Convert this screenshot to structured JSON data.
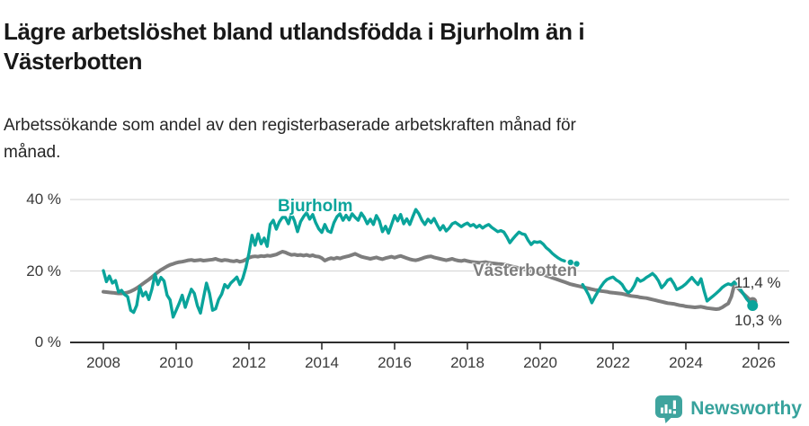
{
  "header": {
    "title": "Lägre arbetslöshet bland utlandsfödda i Bjurholm än i Västerbotten",
    "subtitle": "Arbetssökande som andel av den registerbaserade arbetskraften månad för månad."
  },
  "footer": {
    "brand_name": "Newsworthy",
    "logo_icon": "bar-chart-speech-bubble-icon",
    "brand_color": "#37a29c"
  },
  "colors": {
    "accent_teal": "#0aa49b",
    "series_gray": "#7d7d7d",
    "axis": "#2e2e2e",
    "gridline": "#d9d9d9",
    "text_dark": "#181818"
  },
  "chart_data": {
    "type": "line",
    "title": "Lägre arbetslöshet bland utlandsfödda i Bjurholm än i Västerbotten",
    "subtitle": "Arbetssökande som andel av den registerbaserade arbetskraften månad för månad.",
    "xlabel": "",
    "ylabel": "",
    "x_unit": "månad (monthly, 2008–2025)",
    "x_start": 2008,
    "x_step_years": 0.083333,
    "xlim": [
      2007.1,
      2026.9
    ],
    "ylim": [
      0,
      44.7
    ],
    "grid": "horizontal-light",
    "legend": "inline-labels-on-chart",
    "x_ticks": [
      "2008",
      "2010",
      "2012",
      "2014",
      "2016",
      "2018",
      "2020",
      "2022",
      "2024",
      "2026"
    ],
    "y_ticks": [
      {
        "value": 0,
        "label": "0 %"
      },
      {
        "value": 20,
        "label": "20 %"
      },
      {
        "value": 40,
        "label": "40 %"
      }
    ],
    "series": [
      {
        "name": "Västerbotten",
        "color": "#7d7d7d",
        "end_label": "11,4 %",
        "end_value": 11.4,
        "values": [
          14.2,
          14.1,
          14.0,
          13.9,
          13.8,
          13.7,
          13.7,
          13.8,
          14.0,
          14.3,
          14.7,
          15.2,
          15.8,
          16.4,
          17.0,
          17.6,
          18.3,
          19.0,
          19.7,
          20.3,
          20.8,
          21.3,
          21.7,
          22.0,
          22.3,
          22.5,
          22.6,
          22.8,
          23.0,
          23.1,
          22.9,
          23.0,
          23.1,
          22.9,
          23.0,
          23.1,
          23.2,
          23.4,
          23.1,
          22.9,
          23.1,
          23.0,
          22.8,
          22.7,
          22.9,
          22.6,
          22.8,
          23.2,
          23.7,
          24.0,
          24.1,
          24.0,
          24.2,
          24.1,
          24.3,
          24.2,
          24.4,
          24.6,
          25.0,
          25.4,
          25.2,
          24.8,
          24.5,
          24.6,
          24.4,
          24.5,
          24.3,
          24.5,
          24.2,
          24.4,
          24.1,
          24.0,
          23.6,
          22.9,
          23.3,
          23.6,
          23.4,
          23.7,
          23.5,
          23.8,
          24.0,
          24.2,
          24.5,
          24.8,
          24.4,
          24.0,
          23.8,
          23.6,
          23.4,
          23.6,
          23.8,
          23.5,
          23.3,
          23.6,
          23.8,
          24.0,
          23.7,
          24.0,
          24.2,
          23.9,
          23.6,
          23.3,
          23.1,
          23.0,
          23.2,
          23.5,
          23.8,
          24.0,
          24.1,
          23.8,
          23.6,
          23.4,
          23.2,
          23.0,
          23.2,
          23.4,
          23.1,
          22.9,
          22.8,
          23.0,
          22.8,
          22.6,
          22.5,
          22.4,
          22.3,
          22.4,
          22.5,
          22.3,
          22.2,
          22.1,
          22.0,
          21.9,
          21.8,
          21.6,
          21.4,
          21.2,
          21.0,
          20.8,
          20.6,
          20.4,
          20.2,
          20.0,
          19.8,
          19.6,
          19.3,
          19.0,
          18.7,
          18.4,
          18.1,
          17.8,
          17.5,
          17.2,
          16.9,
          16.6,
          16.3,
          16.1,
          15.9,
          15.7,
          15.5,
          15.3,
          15.1,
          14.9,
          14.7,
          14.6,
          14.4,
          14.3,
          14.2,
          14.0,
          13.9,
          13.8,
          13.7,
          13.6,
          13.4,
          13.2,
          13.0,
          12.9,
          12.8,
          12.6,
          12.5,
          12.4,
          12.2,
          12.0,
          11.8,
          11.6,
          11.4,
          11.2,
          11.0,
          10.9,
          10.8,
          10.6,
          10.4,
          10.3,
          10.1,
          10.0,
          9.9,
          9.8,
          9.9,
          10.0,
          9.8,
          9.6,
          9.5,
          9.4,
          9.3,
          9.4,
          9.8,
          10.4,
          10.9,
          12.8,
          16.2,
          15.4,
          14.5,
          13.6,
          12.8,
          12.0,
          11.4
        ]
      },
      {
        "name": "Bjurholm",
        "color": "#0aa49b",
        "end_label": "10,3 %",
        "end_value": 10.3,
        "values": [
          20.1,
          17.0,
          18.6,
          16.6,
          17.3,
          14.1,
          14.6,
          13.4,
          12.8,
          9.0,
          8.4,
          10.4,
          15.6,
          13.0,
          14.1,
          12.0,
          14.9,
          19.1,
          16.2,
          18.2,
          17.2,
          13.2,
          11.9,
          7.1,
          9.0,
          11.0,
          13.2,
          9.8,
          12.5,
          14.9,
          13.7,
          10.3,
          8.2,
          12.5,
          16.6,
          13.7,
          9.0,
          9.4,
          12.0,
          13.5,
          16.2,
          15.3,
          16.6,
          17.4,
          18.3,
          16.2,
          18.0,
          21.0,
          25.0,
          30.0,
          27.2,
          30.4,
          27.6,
          29.2,
          26.9,
          33.0,
          34.2,
          31.7,
          33.7,
          35.0,
          35.0,
          33.2,
          36.0,
          34.0,
          31.0,
          33.8,
          35.2,
          36.3,
          34.5,
          35.8,
          33.5,
          31.8,
          30.8,
          33.0,
          31.2,
          30.8,
          33.5,
          35.2,
          36.0,
          34.2,
          35.6,
          34.3,
          36.0,
          35.0,
          34.2,
          36.2,
          35.0,
          33.2,
          34.5,
          33.0,
          35.5,
          34.0,
          31.0,
          32.5,
          30.6,
          33.0,
          35.5,
          34.0,
          35.8,
          33.2,
          34.6,
          33.0,
          35.2,
          37.2,
          36.0,
          34.2,
          33.0,
          34.5,
          33.5,
          34.7,
          33.0,
          31.5,
          32.7,
          31.2,
          32.0,
          33.2,
          33.6,
          33.0,
          32.4,
          33.0,
          33.4,
          32.6,
          33.0,
          32.2,
          32.8,
          32.0,
          32.6,
          33.0,
          32.2,
          31.6,
          31.0,
          31.3,
          30.9,
          29.5,
          27.9,
          29.0,
          30.0,
          30.9,
          30.4,
          30.2,
          28.6,
          27.4,
          28.2,
          28.0,
          28.2,
          27.5,
          26.5,
          25.8,
          24.9,
          24.2,
          23.6,
          23.1,
          22.8,
          null,
          22.4,
          null,
          22.0,
          null,
          16.2,
          14.8,
          13.2,
          11.1,
          12.7,
          14.2,
          15.6,
          16.8,
          17.6,
          18.0,
          18.3,
          17.5,
          17.0,
          16.2,
          14.8,
          13.9,
          14.5,
          15.9,
          17.9,
          17.1,
          17.5,
          18.2,
          18.7,
          19.3,
          18.5,
          17.2,
          15.3,
          16.2,
          17.4,
          17.8,
          16.5,
          14.8,
          15.2,
          15.7,
          16.4,
          17.3,
          18.2,
          17.1,
          16.2,
          17.8,
          14.5,
          11.6,
          12.3,
          13.0,
          13.7,
          14.5,
          15.4,
          16.0,
          16.4,
          16.1,
          16.9,
          15.9,
          14.9,
          13.5,
          12.2,
          11.2,
          10.3
        ]
      }
    ],
    "annotations": [
      {
        "text": "Bjurholm",
        "role": "series-label",
        "series": "Bjurholm"
      },
      {
        "text": "Västerbotten",
        "role": "series-label",
        "series": "Västerbotten"
      },
      {
        "text": "11,4 %",
        "role": "end-value",
        "series": "Västerbotten"
      },
      {
        "text": "10,3 %",
        "role": "end-value",
        "series": "Bjurholm"
      }
    ]
  }
}
